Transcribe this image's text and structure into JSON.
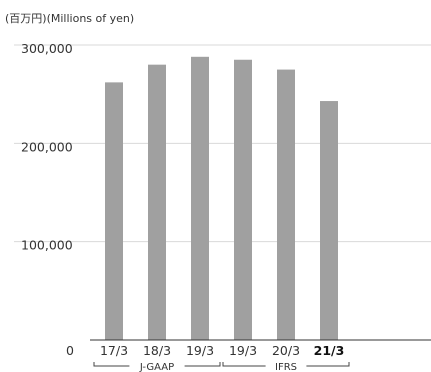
{
  "chart_data": {
    "type": "bar",
    "unit_label": "(百万円)(Millions of yen)",
    "categories": [
      "17/3",
      "18/3",
      "19/3",
      "19/3",
      "20/3",
      "21/3"
    ],
    "values": [
      262000,
      280000,
      288000,
      285000,
      275000,
      243000
    ],
    "highlight_index": 5,
    "ylim": [
      0,
      300000
    ],
    "y_ticks": [
      {
        "value": 300000,
        "label": "300,000"
      },
      {
        "value": 200000,
        "label": "200,000"
      },
      {
        "value": 100000,
        "label": "100,000"
      },
      {
        "value": 0,
        "label": "0"
      }
    ],
    "groups": [
      {
        "label": "J-GAAP",
        "from": 0,
        "to": 2
      },
      {
        "label": "IFRS",
        "from": 3,
        "to": 5
      }
    ],
    "grid": true,
    "bar_color": "#a0a0a0"
  }
}
